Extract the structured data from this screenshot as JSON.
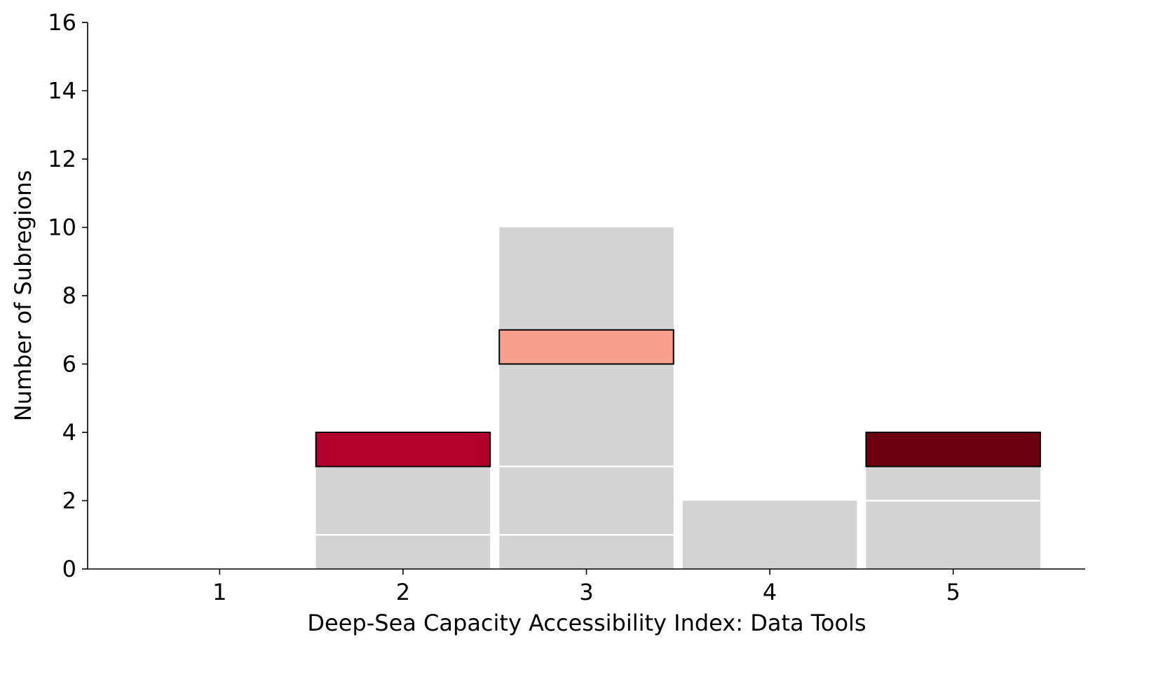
{
  "chart_data": {
    "type": "bar",
    "xlabel": "Deep-Sea Capacity Accessibility Index: Data Tools",
    "ylabel": "Number of Subregions",
    "x_ticks": [
      1,
      2,
      3,
      4,
      5
    ],
    "y_ticks": [
      0,
      2,
      4,
      6,
      8,
      10,
      12,
      14,
      16
    ],
    "xlim": [
      0.28,
      5.72
    ],
    "ylim": [
      0,
      16
    ],
    "grid": false,
    "totals": [
      {
        "x": 2,
        "value": 4
      },
      {
        "x": 3,
        "value": 10
      },
      {
        "x": 4,
        "value": 2
      },
      {
        "x": 5,
        "value": 4
      }
    ],
    "segment_boundaries": [
      {
        "x": 2,
        "values": [
          1,
          3
        ]
      },
      {
        "x": 3,
        "values": [
          1,
          3,
          6,
          7
        ]
      },
      {
        "x": 5,
        "values": [
          2,
          3
        ]
      }
    ],
    "highlights": [
      {
        "x": 2,
        "y0": 3,
        "y1": 4,
        "color": "#b2002d"
      },
      {
        "x": 3,
        "y0": 6,
        "y1": 7,
        "color": "#f8a08d"
      },
      {
        "x": 5,
        "y0": 3,
        "y1": 4,
        "color": "#6b0010"
      }
    ],
    "bar_color": "#d3d3d3"
  }
}
